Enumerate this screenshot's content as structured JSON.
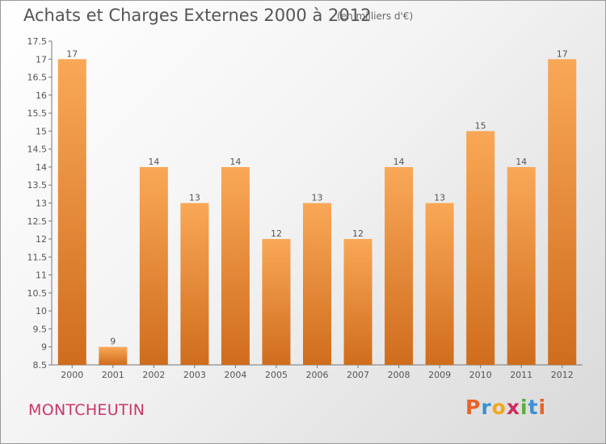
{
  "header": {
    "title": "Achats et Charges Externes 2000 à 2012",
    "subtitle": "(en milliers d'€)"
  },
  "footer": {
    "commune": "MONTCHEUTIN",
    "logo_letters": [
      "P",
      "r",
      "o",
      "x",
      "i",
      "t",
      "i"
    ],
    "logo_colors": [
      "#e8632a",
      "#3f8fd1",
      "#f2a81d",
      "#d02b5c",
      "#5aae3c",
      "#3f8fd1",
      "#e8632a"
    ]
  },
  "colors": {
    "bar_light": "#f9a857",
    "bar_dark": "#cf6d1d",
    "text": "#555555"
  },
  "chart_data": {
    "type": "bar",
    "categories": [
      "2000",
      "2001",
      "2002",
      "2003",
      "2004",
      "2005",
      "2006",
      "2007",
      "2008",
      "2009",
      "2010",
      "2011",
      "2012"
    ],
    "values": [
      17,
      9,
      14,
      13,
      14,
      12,
      13,
      12,
      14,
      13,
      15,
      14,
      17
    ],
    "value_labels": [
      "17",
      "9",
      "14",
      "13",
      "14",
      "12",
      "13",
      "12",
      "14",
      "13",
      "15",
      "14",
      "17"
    ],
    "yticks": [
      "8.5",
      "9",
      "9.5",
      "10",
      "10.5",
      "11",
      "11.5",
      "12",
      "12.5",
      "13",
      "13.5",
      "14",
      "14.5",
      "15",
      "15.5",
      "16",
      "16.5",
      "17",
      "17.5"
    ],
    "ylim": [
      8.5,
      17.5
    ],
    "title": "Achats et Charges Externes 2000 à 2012",
    "xlabel": "",
    "ylabel": "",
    "grid": false,
    "legend": "none"
  }
}
